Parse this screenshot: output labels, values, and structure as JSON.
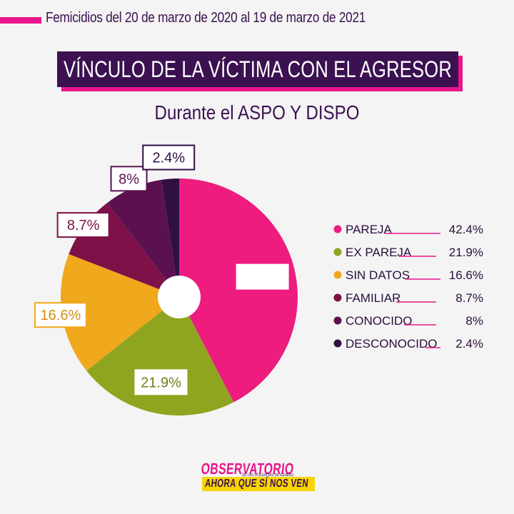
{
  "header": {
    "caption": "Femicidios del 20 de marzo de 2020 al 19 de marzo de 2021"
  },
  "title": "VÍNCULO DE LA VÍCTIMA CON EL AGRESOR",
  "subtitle": "Durante el ASPO Y DISPO",
  "chart_data": {
    "type": "pie",
    "donut": true,
    "unit": "%",
    "legend_position": "right",
    "categories": [
      "PAREJA",
      "EX PAREJA",
      "SIN DATOS",
      "FAMILIAR",
      "CONOCIDO",
      "DESCONOCIDO"
    ],
    "values": [
      42.4,
      21.9,
      16.6,
      8.7,
      8,
      2.4
    ],
    "labels": [
      "42.4%",
      "21.9%",
      "16.6%",
      "8.7%",
      "8%",
      "2.4%"
    ],
    "colors": [
      "#ed1c7e",
      "#8fa51f",
      "#f0a81c",
      "#7d1148",
      "#5b1150",
      "#301043"
    ]
  },
  "logo": {
    "line1": "OBSERVATORIO",
    "line_small": "DE LAS VIOLENCIAS DE GÉNERO",
    "line2": "AHORA QUE SÍ NOS VEN"
  },
  "colors": {
    "accent": "#e8168a",
    "dark": "#3b1151",
    "background": "#f4f4f4"
  }
}
